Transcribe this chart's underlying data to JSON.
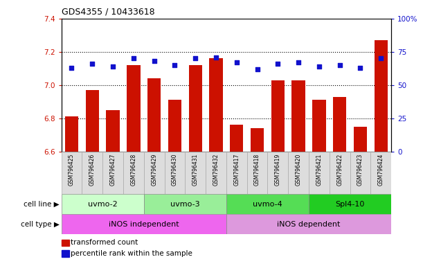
{
  "title": "GDS4355 / 10433618",
  "samples": [
    "GSM796425",
    "GSM796426",
    "GSM796427",
    "GSM796428",
    "GSM796429",
    "GSM796430",
    "GSM796431",
    "GSM796432",
    "GSM796417",
    "GSM796418",
    "GSM796419",
    "GSM796420",
    "GSM796421",
    "GSM796422",
    "GSM796423",
    "GSM796424"
  ],
  "bar_values": [
    6.81,
    6.97,
    6.85,
    7.12,
    7.04,
    6.91,
    7.12,
    7.16,
    6.76,
    6.74,
    7.03,
    7.03,
    6.91,
    6.93,
    6.75,
    7.27
  ],
  "dot_values": [
    63,
    66,
    64,
    70,
    68,
    65,
    70,
    71,
    67,
    62,
    66,
    67,
    64,
    65,
    63,
    70
  ],
  "ylim_left": [
    6.6,
    7.4
  ],
  "ylim_right": [
    0,
    100
  ],
  "yticks_left": [
    6.6,
    6.8,
    7.0,
    7.2,
    7.4
  ],
  "yticks_right": [
    0,
    25,
    50,
    75,
    100
  ],
  "ytick_labels_right": [
    "0",
    "25",
    "50",
    "75",
    "100%"
  ],
  "bar_color": "#cc1100",
  "dot_color": "#1111cc",
  "bar_bottom": 6.6,
  "cell_line_groups": [
    {
      "label": "uvmo-2",
      "start": 0,
      "end": 3,
      "color": "#ccffcc"
    },
    {
      "label": "uvmo-3",
      "start": 4,
      "end": 7,
      "color": "#99ee99"
    },
    {
      "label": "uvmo-4",
      "start": 8,
      "end": 11,
      "color": "#55dd55"
    },
    {
      "label": "Spl4-10",
      "start": 12,
      "end": 15,
      "color": "#22cc22"
    }
  ],
  "cell_type_groups": [
    {
      "label": "iNOS independent",
      "start": 0,
      "end": 7,
      "color": "#ee66ee"
    },
    {
      "label": "iNOS dependent",
      "start": 8,
      "end": 15,
      "color": "#dd99dd"
    }
  ],
  "cell_line_label": "cell line",
  "cell_type_label": "cell type",
  "legend_bar_label": "transformed count",
  "legend_dot_label": "percentile rank within the sample",
  "background_color": "#ffffff",
  "tick_label_color_left": "#cc1100",
  "tick_label_color_right": "#1111cc"
}
